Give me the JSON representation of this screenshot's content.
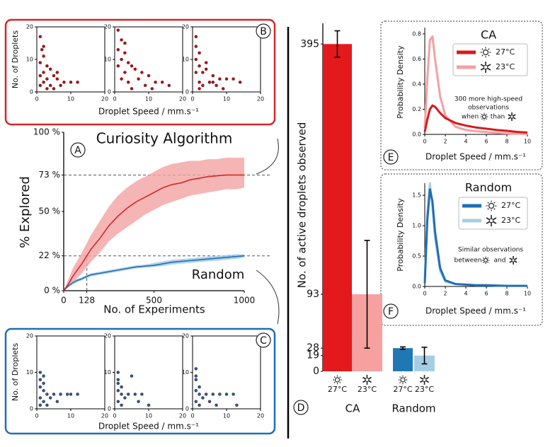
{
  "chart_data": [
    {
      "type": "scatter",
      "panel": "B",
      "color": "#b31212",
      "x_label": "Droplet Speed / mm.s⁻¹",
      "y_label": "No. of Droplets",
      "xlim": [
        0,
        20
      ],
      "ylim": [
        0,
        20
      ],
      "xticks": [
        0,
        10,
        20
      ],
      "yticks": [
        0,
        10,
        20
      ],
      "plots": [
        {
          "points": [
            [
              1,
              17
            ],
            [
              1.5,
              13
            ],
            [
              2,
              11
            ],
            [
              1,
              9
            ],
            [
              3,
              8
            ],
            [
              2,
              6
            ],
            [
              4,
              7
            ],
            [
              5,
              5
            ],
            [
              3,
              4
            ],
            [
              6,
              4
            ],
            [
              8,
              3
            ],
            [
              2,
              3
            ],
            [
              10,
              3
            ],
            [
              12,
              3
            ],
            [
              1,
              2
            ],
            [
              4,
              2
            ],
            [
              7,
              2
            ],
            [
              3,
              1
            ],
            [
              5,
              1
            ],
            [
              1,
              5
            ],
            [
              2,
              14
            ],
            [
              6,
              6
            ]
          ]
        },
        {
          "points": [
            [
              1,
              19
            ],
            [
              2,
              16
            ],
            [
              1,
              13
            ],
            [
              3,
              12
            ],
            [
              2,
              10
            ],
            [
              4,
              9
            ],
            [
              5,
              8
            ],
            [
              6,
              7
            ],
            [
              3,
              6
            ],
            [
              8,
              6
            ],
            [
              10,
              5
            ],
            [
              7,
              4
            ],
            [
              12,
              3
            ],
            [
              14,
              3
            ],
            [
              2,
              4
            ],
            [
              4,
              3
            ],
            [
              9,
              2
            ],
            [
              16,
              2
            ],
            [
              5,
              1
            ],
            [
              11,
              1
            ],
            [
              1,
              8
            ],
            [
              3,
              15
            ]
          ]
        },
        {
          "points": [
            [
              1,
              17
            ],
            [
              1,
              14
            ],
            [
              2,
              12
            ],
            [
              1,
              10
            ],
            [
              2,
              8
            ],
            [
              4,
              7
            ],
            [
              3,
              6
            ],
            [
              6,
              5
            ],
            [
              8,
              4
            ],
            [
              10,
              4
            ],
            [
              12,
              4
            ],
            [
              2,
              3
            ],
            [
              5,
              3
            ],
            [
              7,
              2
            ],
            [
              3,
              2
            ],
            [
              9,
              1
            ],
            [
              14,
              3
            ],
            [
              1,
              6
            ],
            [
              4,
              9
            ],
            [
              2,
              1
            ],
            [
              6,
              3
            ]
          ]
        }
      ]
    },
    {
      "type": "line",
      "panel": "A",
      "x_label": "No. of Experiments",
      "y_label": "% Explored",
      "annotations": [
        "Curiosity Algorithm",
        "Random"
      ],
      "xlim": [
        0,
        1000
      ],
      "ylim": [
        0,
        100
      ],
      "xticks": [
        0,
        128,
        500,
        1000
      ],
      "yticks": [
        {
          "value": 0,
          "label": "0 %"
        },
        {
          "value": 22,
          "label": "22 %"
        },
        {
          "value": 50,
          "label": "50 %"
        },
        {
          "value": 73,
          "label": "73 %"
        },
        {
          "value": 100,
          "label": "100 %"
        }
      ],
      "ref_lines": {
        "y": [
          73,
          22
        ],
        "x": [
          128
        ]
      },
      "x": [
        0,
        25,
        50,
        75,
        100,
        128,
        150,
        200,
        250,
        300,
        350,
        400,
        450,
        500,
        550,
        600,
        650,
        700,
        750,
        800,
        850,
        900,
        950,
        1000
      ],
      "series": [
        {
          "name": "Curiosity Algorithm",
          "color": "#d62728",
          "band_color": "#f4a3a3",
          "values": [
            0,
            4,
            9,
            13,
            17,
            22,
            26,
            33,
            41,
            47,
            52,
            56,
            59,
            62,
            65,
            67,
            68,
            70,
            71,
            72,
            72.5,
            73,
            73,
            73
          ],
          "upper": [
            0,
            7,
            14,
            19,
            24,
            30,
            35,
            44,
            53,
            60,
            65,
            69,
            72,
            75,
            78,
            80,
            81,
            82,
            82,
            83,
            83,
            84,
            84,
            84
          ],
          "lower": [
            0,
            2,
            5,
            8,
            11,
            15,
            18,
            24,
            31,
            36,
            40,
            44,
            48,
            51,
            54,
            56,
            58,
            60,
            61,
            62,
            63,
            64,
            64,
            65
          ]
        },
        {
          "name": "Random",
          "color": "#1f6fb4",
          "band_color": "#9ec8e6",
          "values": [
            0,
            3,
            5,
            6.5,
            7.5,
            9,
            10,
            11,
            12,
            13,
            14,
            15,
            15.5,
            16,
            17,
            18,
            18.5,
            19,
            19.5,
            20,
            20.5,
            21,
            21.5,
            22
          ],
          "upper": [
            0,
            4,
            6,
            7.5,
            8.5,
            10,
            11,
            12,
            13,
            14,
            15,
            16,
            16.5,
            17.5,
            18.5,
            19.5,
            20,
            20.5,
            21,
            21.5,
            22,
            22.5,
            23,
            23
          ],
          "lower": [
            0,
            2,
            4,
            5.5,
            6.5,
            8,
            9,
            10,
            11,
            12,
            13,
            14,
            14.5,
            15,
            15.5,
            16.5,
            17,
            17.5,
            18,
            18.5,
            19,
            19.5,
            20,
            21
          ]
        }
      ]
    },
    {
      "type": "scatter",
      "panel": "C",
      "color": "#1f5f99",
      "x_label": "Droplet Speed / mm.s⁻¹",
      "y_label": "No. of Droplets",
      "xlim": [
        0,
        20
      ],
      "ylim": [
        0,
        20
      ],
      "xticks": [
        0,
        10,
        20
      ],
      "yticks": [
        0,
        10,
        20
      ],
      "plots": [
        {
          "points": [
            [
              1,
              10
            ],
            [
              1,
              8
            ],
            [
              2,
              7
            ],
            [
              1,
              6
            ],
            [
              2,
              5
            ],
            [
              3,
              4
            ],
            [
              5,
              4
            ],
            [
              7,
              4
            ],
            [
              9,
              4
            ],
            [
              10,
              4
            ],
            [
              12,
              4
            ],
            [
              1,
              3
            ],
            [
              2,
              2
            ],
            [
              3,
              1
            ],
            [
              4,
              3
            ],
            [
              1,
              1
            ],
            [
              2,
              9
            ],
            [
              6,
              2
            ]
          ]
        },
        {
          "points": [
            [
              1,
              10
            ],
            [
              1,
              7
            ],
            [
              2,
              6
            ],
            [
              1,
              5
            ],
            [
              2,
              4
            ],
            [
              4,
              4
            ],
            [
              6,
              4
            ],
            [
              8,
              4
            ],
            [
              3,
              3
            ],
            [
              1,
              2
            ],
            [
              2,
              1
            ],
            [
              5,
              9
            ],
            [
              7,
              2
            ],
            [
              10,
              1
            ],
            [
              1,
              8
            ]
          ]
        },
        {
          "points": [
            [
              1,
              11
            ],
            [
              1,
              8
            ],
            [
              2,
              6
            ],
            [
              1,
              5
            ],
            [
              2,
              4
            ],
            [
              4,
              4
            ],
            [
              6,
              4
            ],
            [
              8,
              4
            ],
            [
              10,
              4
            ],
            [
              12,
              4
            ],
            [
              3,
              3
            ],
            [
              1,
              2
            ],
            [
              2,
              1
            ],
            [
              5,
              2
            ],
            [
              7,
              1
            ],
            [
              1,
              9
            ],
            [
              13,
              1
            ]
          ]
        }
      ]
    },
    {
      "type": "bar",
      "panel": "D",
      "y_label": "No. of active droplets observed",
      "categories": [
        "CA",
        "Random"
      ],
      "ylim": [
        0,
        420
      ],
      "yticks": [
        0,
        19,
        28,
        93,
        395
      ],
      "series": [
        {
          "name": "27°C",
          "colors": [
            "#e3191c",
            "#1f78b4"
          ],
          "values": [
            395,
            28
          ],
          "errors": [
            16,
            1.5
          ]
        },
        {
          "name": "23°C",
          "colors": [
            "#f7a0a0",
            "#a6cee3"
          ],
          "values": [
            93,
            19
          ],
          "errors": [
            65,
            10
          ]
        }
      ]
    },
    {
      "type": "line",
      "panel": "E",
      "title": "CA",
      "x_label": "Droplet Speed / mm.s⁻¹",
      "y_label": "Probability Density",
      "annotations": [
        "300 more high-speed",
        "observations",
        "when",
        "than"
      ],
      "xlim": [
        0,
        10
      ],
      "ylim": [
        0,
        0.85
      ],
      "xticks": [
        0,
        2,
        4,
        6,
        8,
        10
      ],
      "yticks": [
        {
          "value": 0,
          "label": "0.0"
        },
        0.2,
        0.4,
        0.6,
        0.8
      ],
      "x": [
        0,
        0.25,
        0.5,
        0.75,
        1,
        1.5,
        2,
        3,
        4,
        5,
        6,
        7,
        8,
        9,
        10
      ],
      "series": [
        {
          "name": "27°C",
          "color": "#d7191c",
          "values": [
            0.02,
            0.12,
            0.2,
            0.23,
            0.22,
            0.17,
            0.13,
            0.09,
            0.07,
            0.055,
            0.045,
            0.035,
            0.028,
            0.02,
            0.015
          ]
        },
        {
          "name": "23°C",
          "color": "#f4a0a0",
          "values": [
            0.05,
            0.45,
            0.75,
            0.78,
            0.6,
            0.3,
            0.15,
            0.06,
            0.035,
            0.025,
            0.018,
            0.012,
            0.008,
            0.005,
            0.003
          ]
        }
      ]
    },
    {
      "type": "line",
      "panel": "F",
      "title": "Random",
      "x_label": "Droplet Speed / mm.s⁻¹",
      "y_label": "Probability Density",
      "annotations": [
        "Similar observations",
        "between",
        "and"
      ],
      "xlim": [
        0,
        10
      ],
      "ylim": [
        0,
        1.7
      ],
      "xticks": [
        0,
        2,
        4,
        6,
        8,
        10
      ],
      "yticks": [
        {
          "value": 0,
          "label": "0.0"
        },
        0.5,
        {
          "value": 1,
          "label": "1.0"
        },
        1.5
      ],
      "x": [
        0,
        0.25,
        0.5,
        0.75,
        1,
        1.5,
        2,
        3,
        4,
        5,
        6,
        7,
        8,
        9,
        10
      ],
      "series": [
        {
          "name": "27°C",
          "color": "#1f6fb4",
          "values": [
            0.05,
            1.1,
            1.6,
            1.4,
            0.9,
            0.3,
            0.1,
            0.04,
            0.03,
            0.02,
            0.02,
            0.015,
            0.01,
            0.01,
            0.01
          ]
        },
        {
          "name": "23°C",
          "color": "#a6cee3",
          "values": [
            0.1,
            1.2,
            1.7,
            1.3,
            0.8,
            0.25,
            0.08,
            0.04,
            0.03,
            0.02,
            0.02,
            0.015,
            0.01,
            0.01,
            0.01
          ]
        }
      ]
    }
  ]
}
